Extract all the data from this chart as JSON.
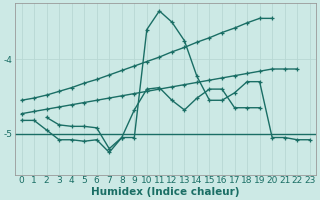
{
  "xlabel": "Humidex (Indice chaleur)",
  "bg_color": "#cce9e5",
  "grid_color": "#b8d8d4",
  "line_color": "#1a6e65",
  "xlim": [
    -0.5,
    23.5
  ],
  "ylim": [
    -5.55,
    -3.25
  ],
  "yticks": [
    -5,
    -4
  ],
  "xtick_labels": [
    "0",
    "1",
    "2",
    "3",
    "4",
    "5",
    "6",
    "7",
    "8",
    "9",
    "10",
    "11",
    "12",
    "13",
    "14",
    "15",
    "16",
    "17",
    "18",
    "19",
    "20",
    "21",
    "22",
    "23"
  ],
  "hline_y": -5.0,
  "line1_x": [
    0,
    1,
    2,
    3,
    4,
    5,
    6,
    7,
    8,
    9,
    10,
    11,
    12,
    13,
    14,
    15,
    16,
    17,
    18,
    19,
    20
  ],
  "line1_y": [
    -4.55,
    -4.52,
    -4.48,
    -4.43,
    -4.38,
    -4.32,
    -4.27,
    -4.21,
    -4.15,
    -4.09,
    -4.03,
    -3.97,
    -3.9,
    -3.84,
    -3.77,
    -3.71,
    -3.64,
    -3.58,
    -3.51,
    -3.45,
    -3.45
  ],
  "line2_x": [
    0,
    1,
    2,
    3,
    4,
    5,
    6,
    7,
    8,
    9,
    10,
    11,
    12,
    13,
    14,
    15,
    16,
    17,
    18,
    19,
    20,
    21,
    22
  ],
  "line2_y": [
    -4.73,
    -4.7,
    -4.67,
    -4.64,
    -4.61,
    -4.58,
    -4.55,
    -4.52,
    -4.49,
    -4.46,
    -4.43,
    -4.4,
    -4.37,
    -4.34,
    -4.31,
    -4.28,
    -4.25,
    -4.22,
    -4.19,
    -4.16,
    -4.13,
    -4.13,
    -4.13
  ],
  "line3_x": [
    2,
    3,
    4,
    5,
    6,
    7,
    8,
    9,
    10,
    11,
    12,
    13,
    14,
    15,
    16,
    17,
    18,
    19,
    20,
    21,
    22,
    23
  ],
  "line3_y": [
    -4.78,
    -4.88,
    -4.9,
    -4.9,
    -4.92,
    -5.2,
    -5.05,
    -5.05,
    -3.6,
    -3.35,
    -3.5,
    -3.75,
    -4.23,
    -4.55,
    -4.55,
    -4.45,
    -4.3,
    -4.3,
    -5.05,
    -5.05,
    -5.08,
    -5.08
  ],
  "line4_x": [
    0,
    1,
    2,
    3,
    4,
    5,
    6,
    7,
    8,
    9,
    10,
    11,
    12,
    13,
    14,
    15,
    16,
    17,
    18,
    19
  ],
  "line4_y": [
    -4.82,
    -4.82,
    -4.95,
    -5.08,
    -5.08,
    -5.1,
    -5.08,
    -5.25,
    -5.05,
    -4.68,
    -4.4,
    -4.38,
    -4.55,
    -4.68,
    -4.52,
    -4.4,
    -4.4,
    -4.65,
    -4.65,
    -4.65
  ],
  "marker_size": 3.0,
  "line_width": 1.0,
  "tick_fontsize": 6.5,
  "xlabel_fontsize": 7.5
}
